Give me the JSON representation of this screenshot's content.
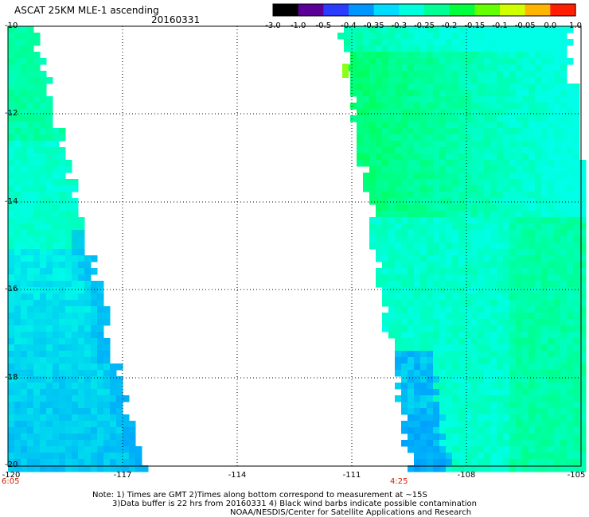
{
  "header": {
    "title": "ASCAT 25KM MLE-1 ascending",
    "date": "20160331"
  },
  "colorbar": {
    "labels": [
      "-3.0",
      "-1.0",
      "-0.5",
      "-0.4",
      "-0.35",
      "-0.3",
      "-0.25",
      "-0.2",
      "-0.15",
      "-0.1",
      "-0.05",
      "0.0",
      "1.0"
    ],
    "colors": [
      "#000000",
      "#5a0096",
      "#2a3cff",
      "#0096ff",
      "#00dcff",
      "#00ffdc",
      "#00ff96",
      "#00ff3c",
      "#64ff00",
      "#d2ff00",
      "#ffb400",
      "#ff1e00"
    ]
  },
  "axes": {
    "y_ticks": [
      "-10",
      "-12",
      "-14",
      "-16",
      "-18",
      "-20"
    ],
    "x_ticks": [
      "-120",
      "-117",
      "-114",
      "-111",
      "-108",
      "-105"
    ],
    "lon_range": [
      -120,
      -105
    ],
    "lat_range": [
      -10,
      -20
    ],
    "grid": true
  },
  "swath_times": {
    "left": "6:05",
    "right": "4:25"
  },
  "colors": {
    "swath_cyan": "#00ffe6",
    "swath_green": "#00ff50",
    "swath_blue": "#0096ff",
    "swath_yellow": "#c8ff00",
    "time_label": "#cc2200"
  },
  "notes": {
    "line1": "Note: 1) Times are GMT 2)Times along bottom correspond to measurement at ~15S",
    "line2": "3)Data buffer is 22 hrs from 20160331 4) Black wind barbs indicate possible contamination",
    "line3": "NOAA/NESDIS/Center for Satellite Applications and Research"
  }
}
